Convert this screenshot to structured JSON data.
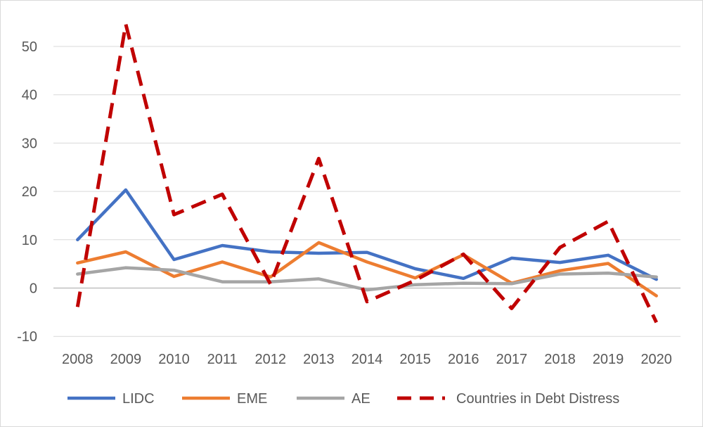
{
  "chart_data": {
    "type": "line",
    "title": "",
    "xlabel": "",
    "ylabel": "",
    "categories": [
      "2008",
      "2009",
      "2010",
      "2011",
      "2012",
      "2013",
      "2014",
      "2015",
      "2016",
      "2017",
      "2018",
      "2019",
      "2020"
    ],
    "ylim": [
      -10,
      55
    ],
    "yticks": [
      -10,
      0,
      10,
      20,
      30,
      40,
      50
    ],
    "grid": true,
    "legend_position": "bottom",
    "series": [
      {
        "name": "LIDC",
        "color": "#4472c4",
        "dash": "solid",
        "values": [
          10,
          20.3,
          5.9,
          8.8,
          7.5,
          7.2,
          7.4,
          4,
          2,
          6.2,
          5.3,
          6.8,
          1.8
        ]
      },
      {
        "name": "EME",
        "color": "#ed7d31",
        "dash": "solid",
        "values": [
          5.2,
          7.5,
          2.4,
          5.4,
          2.3,
          9.4,
          5.4,
          2.1,
          6.9,
          1,
          3.6,
          5.1,
          -1.6
        ]
      },
      {
        "name": "AE",
        "color": "#a5a5a5",
        "dash": "solid",
        "values": [
          2.9,
          4.2,
          3.7,
          1.3,
          1.3,
          1.9,
          -0.4,
          0.7,
          1,
          0.9,
          2.9,
          3.1,
          2.3
        ]
      },
      {
        "name": "Countries in Debt Distress",
        "color": "#c00000",
        "dash": "dashed",
        "values": [
          -3.9,
          54.6,
          15.2,
          19.4,
          0.8,
          26.8,
          -2.8,
          1.6,
          7,
          -4.2,
          8.4,
          13.8,
          -7.1
        ]
      }
    ]
  }
}
